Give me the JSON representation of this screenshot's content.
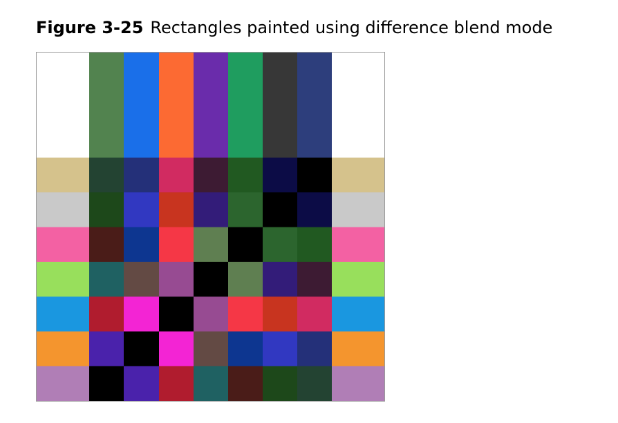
{
  "caption": {
    "label": "Figure 3-25",
    "text": "Rectangles painted using difference blend mode"
  },
  "figure": {
    "columns": [
      {
        "color": "#ffffff"
      },
      {
        "color": "#52834f"
      },
      {
        "color": "#1a6fe9"
      },
      {
        "color": "#fc6a33"
      },
      {
        "color": "#6a2cab"
      },
      {
        "color": "#1f9d5f"
      },
      {
        "color": "#373737"
      },
      {
        "color": "#2d3e7c"
      },
      {
        "color": "#ffffff"
      }
    ],
    "rows": [
      [
        "#d5c28c",
        "#234332",
        "#243079",
        "#d12b61",
        "#3d1b33",
        "#215921",
        "#0c0c46",
        "#000000",
        "#d5c28c"
      ],
      [
        "#c9c9c9",
        "#1d481a",
        "#3138c1",
        "#c8341f",
        "#331c79",
        "#2c652e",
        "#000000",
        "#0c0c46",
        "#c9c9c9"
      ],
      [
        "#f361a3",
        "#4a1c18",
        "#0d3690",
        "#f53746",
        "#5f7f51",
        "#000000",
        "#2c652e",
        "#215921",
        "#f361a3"
      ],
      [
        "#98df5c",
        "#1f6162",
        "#634a44",
        "#974b92",
        "#000000",
        "#5f7f51",
        "#331c79",
        "#3d1b33",
        "#98df5c"
      ],
      [
        "#1a97e0",
        "#b01c2e",
        "#f324d4",
        "#000000",
        "#974b92",
        "#f53746",
        "#c8341f",
        "#d12b61",
        "#1a97e0"
      ],
      [
        "#f4952e",
        "#4a22ab",
        "#000000",
        "#f324d4",
        "#634a44",
        "#0d3690",
        "#3138c1",
        "#243079",
        "#f4952e"
      ],
      [
        "#b07eb6",
        "#000000",
        "#4a22ab",
        "#b01c2e",
        "#1f6162",
        "#4a1c18",
        "#1d481a",
        "#234332",
        "#b07eb6"
      ]
    ]
  }
}
